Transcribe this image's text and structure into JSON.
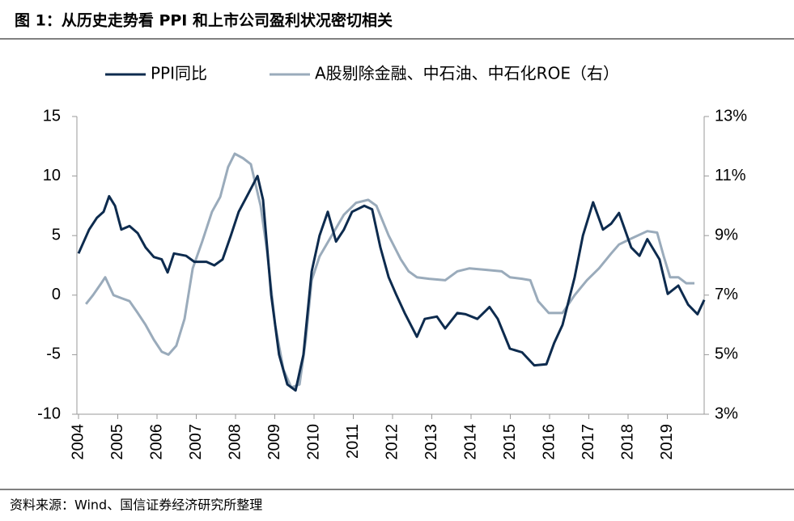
{
  "chart_data": {
    "type": "line",
    "title": "图 1：从历史走势看 PPI 和上市公司盈利状况密切相关",
    "source": "资料来源：Wind、国信证券经济研究所整理",
    "xlim": [
      2004,
      2020
    ],
    "xticks": [
      2004,
      2005,
      2006,
      2007,
      2008,
      2009,
      2010,
      2011,
      2012,
      2013,
      2014,
      2015,
      2016,
      2017,
      2018,
      2019
    ],
    "ylim": [
      -10,
      15
    ],
    "yticks": [
      -10,
      -5,
      0,
      5,
      10,
      15
    ],
    "y2lim": [
      3,
      13
    ],
    "y2ticks": [
      {
        "value": 3,
        "label": "3%"
      },
      {
        "value": 5,
        "label": "5%"
      },
      {
        "value": 7,
        "label": "7%"
      },
      {
        "value": 9,
        "label": "9%"
      },
      {
        "value": 11,
        "label": "11%"
      },
      {
        "value": 13,
        "label": "13%"
      }
    ],
    "series": [
      {
        "name": "PPI同比",
        "color": "#0d2b4e",
        "x": [
          2004.0,
          2004.27,
          2004.47,
          2004.64,
          2004.78,
          2004.93,
          2005.09,
          2005.3,
          2005.51,
          2005.71,
          2005.92,
          2006.12,
          2006.27,
          2006.43,
          2006.74,
          2006.95,
          2007.26,
          2007.46,
          2007.67,
          2007.88,
          2008.08,
          2008.29,
          2008.56,
          2008.7,
          2008.91,
          2009.11,
          2009.32,
          2009.53,
          2009.73,
          2009.94,
          2010.14,
          2010.35,
          2010.56,
          2010.76,
          2010.97,
          2011.28,
          2011.48,
          2011.69,
          2011.9,
          2012.1,
          2012.31,
          2012.62,
          2012.82,
          2013.13,
          2013.34,
          2013.65,
          2013.86,
          2014.16,
          2014.47,
          2014.68,
          2014.99,
          2015.3,
          2015.61,
          2015.92,
          2016.12,
          2016.33,
          2016.64,
          2016.85,
          2017.11,
          2017.36,
          2017.57,
          2017.77,
          2018.08,
          2018.29,
          2018.49,
          2018.8,
          2019.01,
          2019.28,
          2019.53,
          2019.77,
          2019.94
        ],
        "values": [
          3.5,
          5.5,
          6.5,
          7.0,
          8.3,
          7.5,
          5.5,
          5.8,
          5.2,
          4.0,
          3.2,
          3.0,
          1.9,
          3.5,
          3.3,
          2.8,
          2.8,
          2.5,
          3.0,
          5.0,
          7.0,
          8.3,
          10.0,
          8.0,
          0.0,
          -5.0,
          -7.5,
          -8.0,
          -5.0,
          2.0,
          5.0,
          7.0,
          4.5,
          5.5,
          7.0,
          7.5,
          7.2,
          4.0,
          1.5,
          0.0,
          -1.5,
          -3.5,
          -2.0,
          -1.8,
          -2.8,
          -1.5,
          -1.6,
          -2.0,
          -1.0,
          -2.0,
          -4.5,
          -4.8,
          -5.9,
          -5.8,
          -4.0,
          -2.5,
          1.5,
          5.0,
          7.8,
          5.5,
          6.0,
          6.9,
          4.0,
          3.3,
          4.7,
          3.0,
          0.1,
          0.8,
          -0.8,
          -1.6,
          -0.4
        ]
      },
      {
        "name": "A股剔除金融、中石油、中石化ROE（右）",
        "color": "#9aabbb",
        "axis": "y2",
        "x": [
          2004.19,
          2004.37,
          2004.58,
          2004.68,
          2004.89,
          2005.09,
          2005.3,
          2005.51,
          2005.71,
          2005.92,
          2006.12,
          2006.29,
          2006.49,
          2006.7,
          2006.91,
          2007.15,
          2007.4,
          2007.61,
          2007.81,
          2007.98,
          2008.19,
          2008.39,
          2008.64,
          2008.8,
          2009.01,
          2009.22,
          2009.42,
          2009.63,
          2009.79,
          2009.94,
          2010.14,
          2010.45,
          2010.76,
          2011.07,
          2011.38,
          2011.59,
          2011.9,
          2012.21,
          2012.41,
          2012.62,
          2012.93,
          2013.34,
          2013.65,
          2013.96,
          2014.37,
          2014.78,
          2014.99,
          2015.3,
          2015.51,
          2015.71,
          2015.98,
          2016.33,
          2016.64,
          2016.95,
          2017.26,
          2017.57,
          2017.77,
          2018.08,
          2018.49,
          2018.74,
          2018.91,
          2019.07,
          2019.28,
          2019.48,
          2019.69
        ],
        "values": [
          6.7,
          7.0,
          7.4,
          7.6,
          7.0,
          6.9,
          6.8,
          6.4,
          6.0,
          5.5,
          5.1,
          5.0,
          5.3,
          6.2,
          7.9,
          8.8,
          9.8,
          10.3,
          11.3,
          11.75,
          11.6,
          11.4,
          10.0,
          8.5,
          6.0,
          4.5,
          3.9,
          4.0,
          5.5,
          7.5,
          8.3,
          9.0,
          9.7,
          10.1,
          10.2,
          10.0,
          9.0,
          8.2,
          7.8,
          7.6,
          7.55,
          7.5,
          7.8,
          7.9,
          7.85,
          7.8,
          7.6,
          7.55,
          7.5,
          6.8,
          6.4,
          6.4,
          7.0,
          7.5,
          7.9,
          8.4,
          8.7,
          8.9,
          9.15,
          9.1,
          8.3,
          7.6,
          7.6,
          7.4,
          7.4
        ]
      }
    ]
  }
}
